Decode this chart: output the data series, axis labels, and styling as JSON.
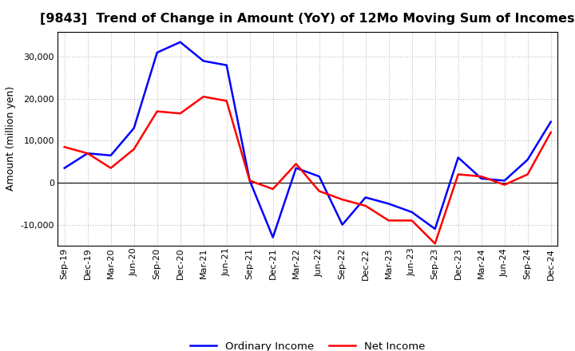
{
  "title": "[9843]  Trend of Change in Amount (YoY) of 12Mo Moving Sum of Incomes",
  "ylabel": "Amount (million yen)",
  "x_labels": [
    "Sep-19",
    "Dec-19",
    "Mar-20",
    "Jun-20",
    "Sep-20",
    "Dec-20",
    "Mar-21",
    "Jun-21",
    "Sep-21",
    "Dec-21",
    "Mar-22",
    "Jun-22",
    "Sep-22",
    "Dec-22",
    "Mar-23",
    "Jun-23",
    "Sep-23",
    "Dec-23",
    "Mar-24",
    "Jun-24",
    "Sep-24",
    "Dec-24"
  ],
  "ordinary_income": [
    3500,
    7000,
    6500,
    13000,
    31000,
    33500,
    29000,
    28000,
    500,
    -13000,
    3500,
    1500,
    -10000,
    -3500,
    -5000,
    -7000,
    -11000,
    6000,
    1000,
    500,
    5500,
    14500
  ],
  "net_income": [
    8500,
    7000,
    3500,
    8000,
    17000,
    16500,
    20500,
    19500,
    500,
    -1500,
    4500,
    -2000,
    -4000,
    -5500,
    -9000,
    -9000,
    -14500,
    2000,
    1500,
    -500,
    2000,
    12000
  ],
  "ordinary_income_color": "#0000FF",
  "net_income_color": "#FF0000",
  "ylim": [
    -15000,
    36000
  ],
  "yticks": [
    -10000,
    0,
    10000,
    20000,
    30000
  ],
  "background_color": "#FFFFFF",
  "grid_color": "#AAAAAA",
  "line_width": 1.8,
  "title_fontsize": 11.5,
  "legend_fontsize": 9.5,
  "tick_fontsize": 8,
  "ylabel_fontsize": 9
}
